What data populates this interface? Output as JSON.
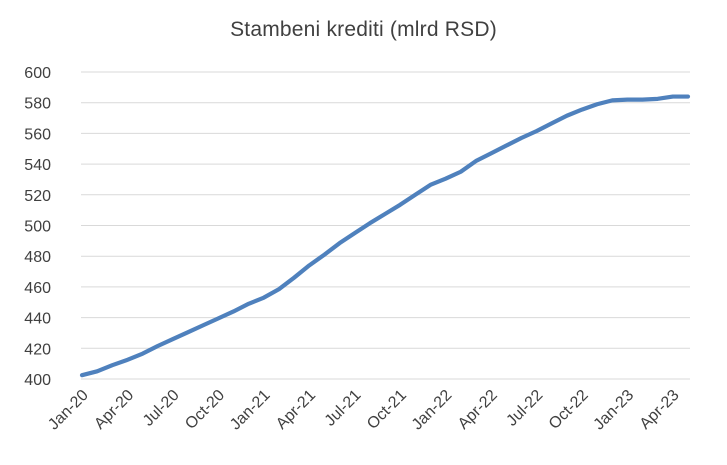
{
  "chart_data": {
    "type": "line",
    "title": "Stambeni krediti (mlrd RSD)",
    "xlabel": "",
    "ylabel": "",
    "ylim": [
      400,
      600
    ],
    "y_ticks": [
      400,
      420,
      440,
      460,
      480,
      500,
      520,
      540,
      560,
      580,
      600
    ],
    "grid": "horizontal",
    "legend": "none",
    "x_tick_labels": [
      "Jan-20",
      "Apr-20",
      "Jul-20",
      "Oct-20",
      "Jan-21",
      "Apr-21",
      "Jul-21",
      "Oct-21",
      "Jan-22",
      "Apr-22",
      "Jul-22",
      "Oct-22",
      "Jan-23",
      "Apr-23"
    ],
    "x": [
      "Jan-20",
      "Feb-20",
      "Mar-20",
      "Apr-20",
      "May-20",
      "Jun-20",
      "Jul-20",
      "Aug-20",
      "Sep-20",
      "Oct-20",
      "Nov-20",
      "Dec-20",
      "Jan-21",
      "Feb-21",
      "Mar-21",
      "Apr-21",
      "May-21",
      "Jun-21",
      "Jul-21",
      "Aug-21",
      "Sep-21",
      "Oct-21",
      "Nov-21",
      "Dec-21",
      "Jan-22",
      "Feb-22",
      "Mar-22",
      "Apr-22",
      "May-22",
      "Jun-22",
      "Jul-22",
      "Aug-22",
      "Sep-22",
      "Oct-22",
      "Nov-22",
      "Dec-22",
      "Jan-23",
      "Feb-23",
      "Mar-23",
      "Apr-23",
      "May-23"
    ],
    "series": [
      {
        "color": "#4f81bd",
        "values": [
          402.5,
          405,
          409,
          412.5,
          416.5,
          421.5,
          426,
          430.5,
          435,
          439.5,
          444,
          449,
          453,
          458.5,
          466,
          474,
          481,
          488.5,
          495,
          501.5,
          507.5,
          513.5,
          520,
          526.5,
          530.5,
          535,
          542,
          547,
          552,
          557,
          561.5,
          566.5,
          571.5,
          575.5,
          579,
          581.5,
          582,
          582,
          582.5,
          584,
          584
        ]
      }
    ]
  }
}
